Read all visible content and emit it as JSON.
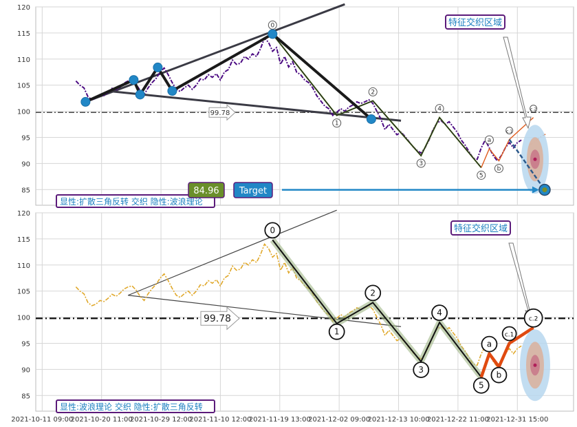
{
  "chart_data": [
    {
      "type": "line",
      "panel": "top",
      "ylim": [
        82,
        120
      ],
      "yticks": [
        85,
        90,
        95,
        100,
        105,
        110,
        115,
        120
      ],
      "hline": 99.78,
      "hline_label": "99.78",
      "price_label": "84.96",
      "target_label": "Target",
      "title_box": "特征交织区域",
      "caption": "显性:扩散三角反转 交织 隐性:波浪理论",
      "price_series": [
        [
          0.0,
          105.8
        ],
        [
          0.5,
          105.0
        ],
        [
          1.0,
          104.5
        ],
        [
          1.5,
          102.8
        ],
        [
          2.0,
          102.2
        ],
        [
          2.5,
          102.5
        ],
        [
          3.0,
          103.2
        ],
        [
          3.5,
          103.0
        ],
        [
          4.0,
          103.6
        ],
        [
          4.5,
          104.4
        ],
        [
          5.0,
          104.0
        ],
        [
          5.5,
          104.6
        ],
        [
          6.0,
          105.4
        ],
        [
          6.5,
          105.8
        ],
        [
          7.0,
          106.0
        ],
        [
          7.5,
          105.2
        ],
        [
          8.0,
          104.0
        ],
        [
          8.5,
          103.2
        ],
        [
          9.0,
          104.5
        ],
        [
          9.5,
          105.5
        ],
        [
          10.0,
          106.3
        ],
        [
          10.5,
          107.5
        ],
        [
          11.0,
          108.3
        ],
        [
          11.5,
          107.0
        ],
        [
          12.0,
          105.5
        ],
        [
          12.5,
          104.2
        ],
        [
          13.0,
          103.8
        ],
        [
          13.5,
          104.5
        ],
        [
          14.0,
          105.0
        ],
        [
          14.5,
          104.2
        ],
        [
          15.0,
          105.0
        ],
        [
          15.5,
          106.2
        ],
        [
          16.0,
          106.0
        ],
        [
          16.5,
          107.0
        ],
        [
          17.0,
          106.5
        ],
        [
          17.5,
          107.2
        ],
        [
          18.0,
          106.0
        ],
        [
          18.5,
          107.5
        ],
        [
          19.0,
          108.0
        ],
        [
          19.5,
          109.8
        ],
        [
          20.0,
          109.0
        ],
        [
          20.5,
          109.2
        ],
        [
          21.0,
          110.5
        ],
        [
          21.5,
          110.0
        ],
        [
          22.0,
          111.0
        ],
        [
          22.5,
          110.5
        ],
        [
          23.0,
          112.0
        ],
        [
          23.5,
          114.0
        ],
        [
          24.0,
          113.2
        ],
        [
          24.5,
          111.5
        ],
        [
          25.0,
          112.2
        ],
        [
          25.5,
          109.0
        ],
        [
          26.0,
          110.5
        ],
        [
          26.5,
          108.5
        ],
        [
          27.0,
          109.5
        ],
        [
          27.5,
          107.5
        ],
        [
          28.0,
          107.0
        ],
        [
          28.5,
          106.0
        ],
        [
          29.0,
          105.5
        ],
        [
          29.5,
          104.5
        ],
        [
          30.0,
          103.0
        ],
        [
          30.5,
          102.0
        ],
        [
          31.0,
          101.0
        ],
        [
          31.5,
          100.5
        ],
        [
          32.0,
          99.2
        ],
        [
          32.5,
          99.8
        ],
        [
          33.0,
          100.5
        ],
        [
          33.5,
          100.0
        ],
        [
          34.0,
          100.8
        ],
        [
          34.5,
          101.2
        ],
        [
          35.0,
          101.8
        ],
        [
          35.5,
          101.5
        ],
        [
          36.0,
          101.8
        ],
        [
          36.5,
          102.2
        ],
        [
          37.0,
          101.5
        ],
        [
          37.5,
          100.0
        ],
        [
          38.0,
          98.5
        ],
        [
          38.5,
          96.5
        ],
        [
          39.0,
          97.5
        ],
        [
          39.5,
          96.5
        ],
        [
          40.0,
          95.5
        ],
        [
          40.5,
          96.0
        ],
        [
          41.0,
          95.2
        ],
        [
          41.5,
          94.2
        ],
        [
          42.0,
          93.2
        ],
        [
          42.5,
          92.5
        ],
        [
          43.0,
          92.0
        ],
        [
          43.5,
          93.0
        ],
        [
          44.0,
          94.5
        ],
        [
          44.5,
          96.5
        ],
        [
          45.0,
          97.8
        ],
        [
          45.5,
          98.2
        ],
        [
          46.0,
          97.5
        ],
        [
          46.5,
          98.0
        ],
        [
          47.0,
          97.0
        ],
        [
          47.5,
          96.0
        ],
        [
          48.0,
          94.5
        ],
        [
          48.5,
          93.5
        ],
        [
          49.0,
          92.2
        ],
        [
          49.5,
          91.0
        ],
        [
          50.0,
          90.8
        ],
        [
          50.5,
          93.0
        ],
        [
          51.0,
          94.5
        ],
        [
          51.5,
          93.0
        ],
        [
          52.0,
          91.5
        ],
        [
          52.5,
          90.5
        ],
        [
          53.0,
          91.5
        ],
        [
          53.5,
          93.0
        ],
        [
          54.0,
          94.0
        ],
        [
          54.5,
          93.0
        ],
        [
          55.0,
          94.0
        ],
        [
          55.5,
          94.5
        ]
      ],
      "projection_series": [
        [
          56.5,
          93.5
        ],
        [
          57.0,
          94.0
        ],
        [
          57.5,
          94.6
        ],
        [
          58.0,
          95.2
        ],
        [
          58.5,
          95.6
        ]
      ],
      "wave_points": [
        {
          "label": "0",
          "x": 24.5,
          "y": 114.8
        },
        {
          "label": "1",
          "x": 32.5,
          "y": 99.2
        },
        {
          "label": "2",
          "x": 37.0,
          "y": 102.0
        },
        {
          "label": "3",
          "x": 43.0,
          "y": 91.5
        },
        {
          "label": "4",
          "x": 45.3,
          "y": 98.8
        },
        {
          "label": "5",
          "x": 50.5,
          "y": 89.2
        },
        {
          "label": "a",
          "x": 51.5,
          "y": 92.8
        },
        {
          "label": "b",
          "x": 52.7,
          "y": 90.5
        },
        {
          "label": "c.1",
          "x": 54.0,
          "y": 94.6
        },
        {
          "label": "c.2",
          "x": 57.0,
          "y": 98.8
        }
      ],
      "triangle_points": [
        {
          "x": 1.2,
          "y": 101.8
        },
        {
          "x": 7.2,
          "y": 106.0
        },
        {
          "x": 8.0,
          "y": 103.2
        },
        {
          "x": 10.2,
          "y": 108.4
        },
        {
          "x": 12.0,
          "y": 103.9
        },
        {
          "x": 24.5,
          "y": 114.8
        },
        {
          "x": 36.8,
          "y": 98.5
        }
      ],
      "target_point": {
        "x": 58.4,
        "y": 84.96
      }
    },
    {
      "type": "line",
      "panel": "bottom",
      "ylim": [
        82,
        120
      ],
      "yticks": [
        85,
        90,
        95,
        100,
        105,
        110,
        115,
        120
      ],
      "hline": 99.78,
      "hline_label": "99.78",
      "title_box": "特征交织区域",
      "caption": "显性:波浪理论 交织 隐性:扩散三角反转",
      "xticks": [
        "2021-10-11 09:00",
        "2021-10-20 11:00",
        "2021-10-29 12:00",
        "2021-11-10 12:00",
        "2021-11-19 13:00",
        "2021-12-02 09:00",
        "2021-12-13 10:00",
        "2021-12-22 11:00",
        "2021-12-31 15:00"
      ],
      "xlim": [
        -5,
        62
      ],
      "wave_points": [
        {
          "label": "0",
          "x": 24.5,
          "y": 114.8
        },
        {
          "label": "1",
          "x": 32.5,
          "y": 98.8
        },
        {
          "label": "2",
          "x": 37.0,
          "y": 102.8
        },
        {
          "label": "3",
          "x": 43.0,
          "y": 91.5
        },
        {
          "label": "4",
          "x": 45.3,
          "y": 99.0
        },
        {
          "label": "5",
          "x": 50.5,
          "y": 88.5
        },
        {
          "label": "a",
          "x": 51.5,
          "y": 93.0
        },
        {
          "label": "b",
          "x": 52.7,
          "y": 90.5
        },
        {
          "label": "c.1",
          "x": 54.0,
          "y": 95.0
        },
        {
          "label": "c.2",
          "x": 57.0,
          "y": 98.0
        }
      ]
    }
  ]
}
